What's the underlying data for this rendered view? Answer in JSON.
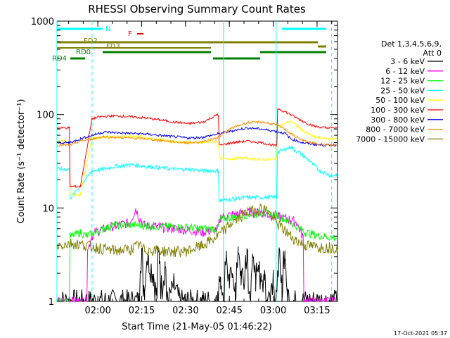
{
  "chart_data": {
    "type": "line",
    "title": "RHESSI Observing Summary Count Rates",
    "xlabel": "Start Time (21-May-05 01:46:22)",
    "ylabel": "Count Rate (s⁻¹ detector⁻¹)",
    "y_scale": "log",
    "ylim": [
      1,
      1000
    ],
    "xlim_minutes": [
      0,
      96
    ],
    "x_tick_labels": [
      "02:00",
      "02:15",
      "02:30",
      "02:45",
      "03:00",
      "03:15"
    ],
    "y_tick_labels": [
      "1",
      "10",
      "100",
      "1000"
    ],
    "legend_title": [
      "Det 1,3,4,5,6,9,",
      "Att 0"
    ],
    "legend_position": "right",
    "timestamp": "17-Oct-2021 05:37",
    "flag_labels": [
      "N",
      "F",
      "FD2",
      "FD3",
      "RD0",
      "RD4"
    ],
    "series": [
      {
        "name": "3 - 6 keV",
        "color": "#000000",
        "x": [
          0,
          28,
          29,
          30,
          31,
          33,
          34,
          35,
          36,
          37,
          38,
          40,
          42,
          45,
          50,
          55,
          56,
          57,
          58,
          59,
          60,
          61,
          62,
          63,
          64,
          65,
          66,
          67,
          68,
          69,
          70,
          71,
          72,
          73,
          74,
          75,
          76,
          77,
          78,
          79,
          80,
          84,
          96
        ],
        "y": [
          1,
          1,
          3,
          1.5,
          3,
          2,
          1.2,
          3,
          1.5,
          2.5,
          1,
          1.5,
          1,
          1,
          1,
          1,
          2,
          1,
          3,
          1.5,
          2.5,
          1.2,
          3,
          2,
          1.5,
          3,
          1.2,
          2.5,
          1.8,
          3,
          1.5,
          2.2,
          1,
          1.3,
          2,
          1,
          2.8,
          1.5,
          3.2,
          1.2,
          1,
          1,
          1
        ]
      },
      {
        "name": "6 - 12 keV",
        "color": "#ff00ff",
        "x": [
          0,
          10,
          11,
          12,
          13,
          16,
          20,
          25,
          27,
          28,
          30,
          35,
          40,
          45,
          50,
          55,
          56,
          60,
          65,
          70,
          72,
          76,
          80,
          82,
          84,
          85,
          96
        ],
        "y": [
          1,
          1,
          4,
          5,
          5.5,
          6,
          6.5,
          7,
          10,
          8,
          6.5,
          6.3,
          6,
          5.8,
          5.5,
          6,
          8,
          8.5,
          9,
          9,
          8.5,
          8,
          7.5,
          7,
          5,
          1,
          1
        ]
      },
      {
        "name": "12 - 25 keV",
        "color": "#00ff00",
        "x": [
          0,
          4,
          5,
          8,
          10,
          12,
          14,
          16,
          18,
          20,
          25,
          30,
          35,
          40,
          45,
          50,
          55,
          56,
          60,
          65,
          70,
          75,
          80,
          85,
          90,
          96
        ],
        "y": [
          1,
          1,
          5,
          5.5,
          5,
          5.3,
          5.6,
          6,
          6.3,
          6.5,
          6.6,
          6.5,
          6.4,
          6.3,
          6.2,
          6,
          6,
          7.5,
          8,
          8.5,
          8.8,
          8.5,
          7,
          5.5,
          5,
          4.8
        ]
      },
      {
        "name": "25 - 50 keV",
        "color": "#00ffff",
        "x": [
          0,
          4,
          5,
          12,
          16,
          20,
          25,
          30,
          35,
          40,
          45,
          50,
          55,
          56,
          60,
          65,
          70,
          75,
          76,
          80,
          85,
          90,
          94,
          96
        ],
        "y": [
          26,
          26,
          13,
          25,
          26,
          28,
          29,
          28,
          27,
          26,
          26,
          25,
          25,
          12,
          12.5,
          13,
          13,
          13,
          40,
          45,
          35,
          25,
          22,
          23
        ]
      },
      {
        "name": "50 - 100 keV",
        "color": "#ffff00",
        "x": [
          0,
          4,
          5,
          8,
          12,
          16,
          20,
          25,
          30,
          35,
          40,
          45,
          50,
          55,
          56,
          60,
          65,
          70,
          75,
          76,
          80,
          84,
          88,
          92,
          96
        ],
        "y": [
          52,
          52,
          14,
          14,
          55,
          58,
          58,
          59,
          57,
          54,
          51,
          50,
          50,
          52,
          33,
          34,
          34,
          33,
          33,
          75,
          85,
          68,
          57,
          55,
          55
        ]
      },
      {
        "name": "100 - 300 keV",
        "color": "#ff0000",
        "x": [
          0,
          4,
          5,
          8,
          12,
          15,
          20,
          25,
          30,
          35,
          40,
          45,
          50,
          55,
          56,
          60,
          65,
          70,
          75,
          76,
          80,
          84,
          88,
          92,
          96
        ],
        "y": [
          72,
          72,
          17,
          17,
          90,
          95,
          97,
          95,
          92,
          88,
          83,
          80,
          83,
          100,
          47,
          50,
          52,
          50,
          46,
          115,
          100,
          85,
          75,
          72,
          72
        ]
      },
      {
        "name": "300 - 800 keV",
        "color": "#0000ff",
        "x": [
          0,
          4,
          6,
          8,
          12,
          16,
          20,
          25,
          30,
          35,
          40,
          45,
          50,
          55,
          60,
          65,
          70,
          75,
          78,
          80,
          84,
          88,
          92,
          96
        ],
        "y": [
          50,
          50,
          52,
          55,
          60,
          65,
          64,
          63,
          62,
          60,
          58,
          56,
          57,
          62,
          67,
          72,
          70,
          66,
          63,
          55,
          50,
          48,
          47,
          47
        ]
      },
      {
        "name": "800 - 7000 keV",
        "color": "#ff8c00",
        "x": [
          0,
          4,
          6,
          8,
          12,
          16,
          20,
          25,
          30,
          35,
          40,
          45,
          50,
          55,
          60,
          65,
          70,
          75,
          78,
          80,
          84,
          88,
          92,
          96
        ],
        "y": [
          47,
          47,
          49,
          52,
          55,
          58,
          57,
          56,
          55,
          53,
          51,
          50,
          51,
          57,
          72,
          82,
          83,
          78,
          70,
          62,
          53,
          49,
          47,
          47
        ]
      },
      {
        "name": "7000 - 15000 keV",
        "color": "#808000",
        "x": [
          0,
          5,
          10,
          15,
          20,
          25,
          28,
          30,
          35,
          40,
          45,
          50,
          55,
          60,
          65,
          70,
          72,
          75,
          80,
          82,
          85,
          90,
          96
        ],
        "y": [
          4,
          4.2,
          4,
          3.7,
          3.5,
          3.6,
          4,
          3.6,
          3.5,
          3.4,
          3.5,
          4,
          5,
          7,
          9,
          10,
          9.5,
          7,
          5,
          4.5,
          4,
          3.8,
          3.8
        ]
      }
    ]
  }
}
